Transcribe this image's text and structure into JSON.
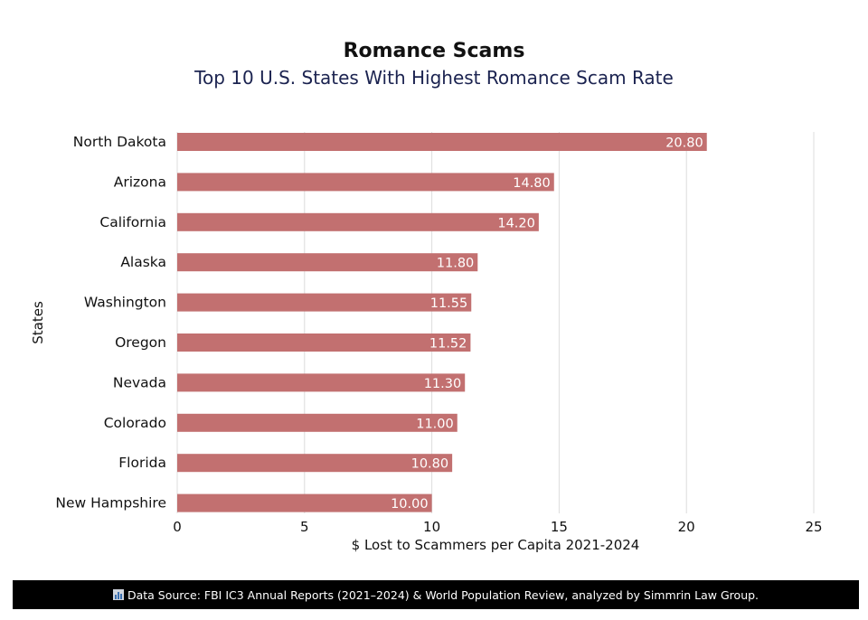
{
  "chart_data": {
    "type": "bar",
    "orientation": "horizontal",
    "title": "Romance Scams",
    "subtitle": "Top 10 U.S. States With Highest Romance Scam Rate",
    "xlabel": "$ Lost to Scammers per Capita 2021-2024",
    "ylabel": "States",
    "categories": [
      "North Dakota",
      "Arizona",
      "California",
      "Alaska",
      "Washington",
      "Oregon",
      "Nevada",
      "Colorado",
      "Florida",
      "New Hampshire"
    ],
    "values": [
      20.8,
      14.8,
      14.2,
      11.8,
      11.55,
      11.52,
      11.3,
      11.0,
      10.8,
      10.0
    ],
    "data_labels": [
      "20.80",
      "14.80",
      "14.20",
      "11.80",
      "11.55",
      "11.52",
      "11.30",
      "11.00",
      "10.80",
      "10.00"
    ],
    "xlim": [
      0,
      25
    ],
    "xticks": [
      0,
      5,
      10,
      15,
      20,
      25
    ],
    "grid": true,
    "bar_color": "#c27070"
  },
  "footer": {
    "text": "Data Source: FBI IC3 Annual Reports (2021–2024) & World Population Review, analyzed by Simmrin Law Group."
  }
}
